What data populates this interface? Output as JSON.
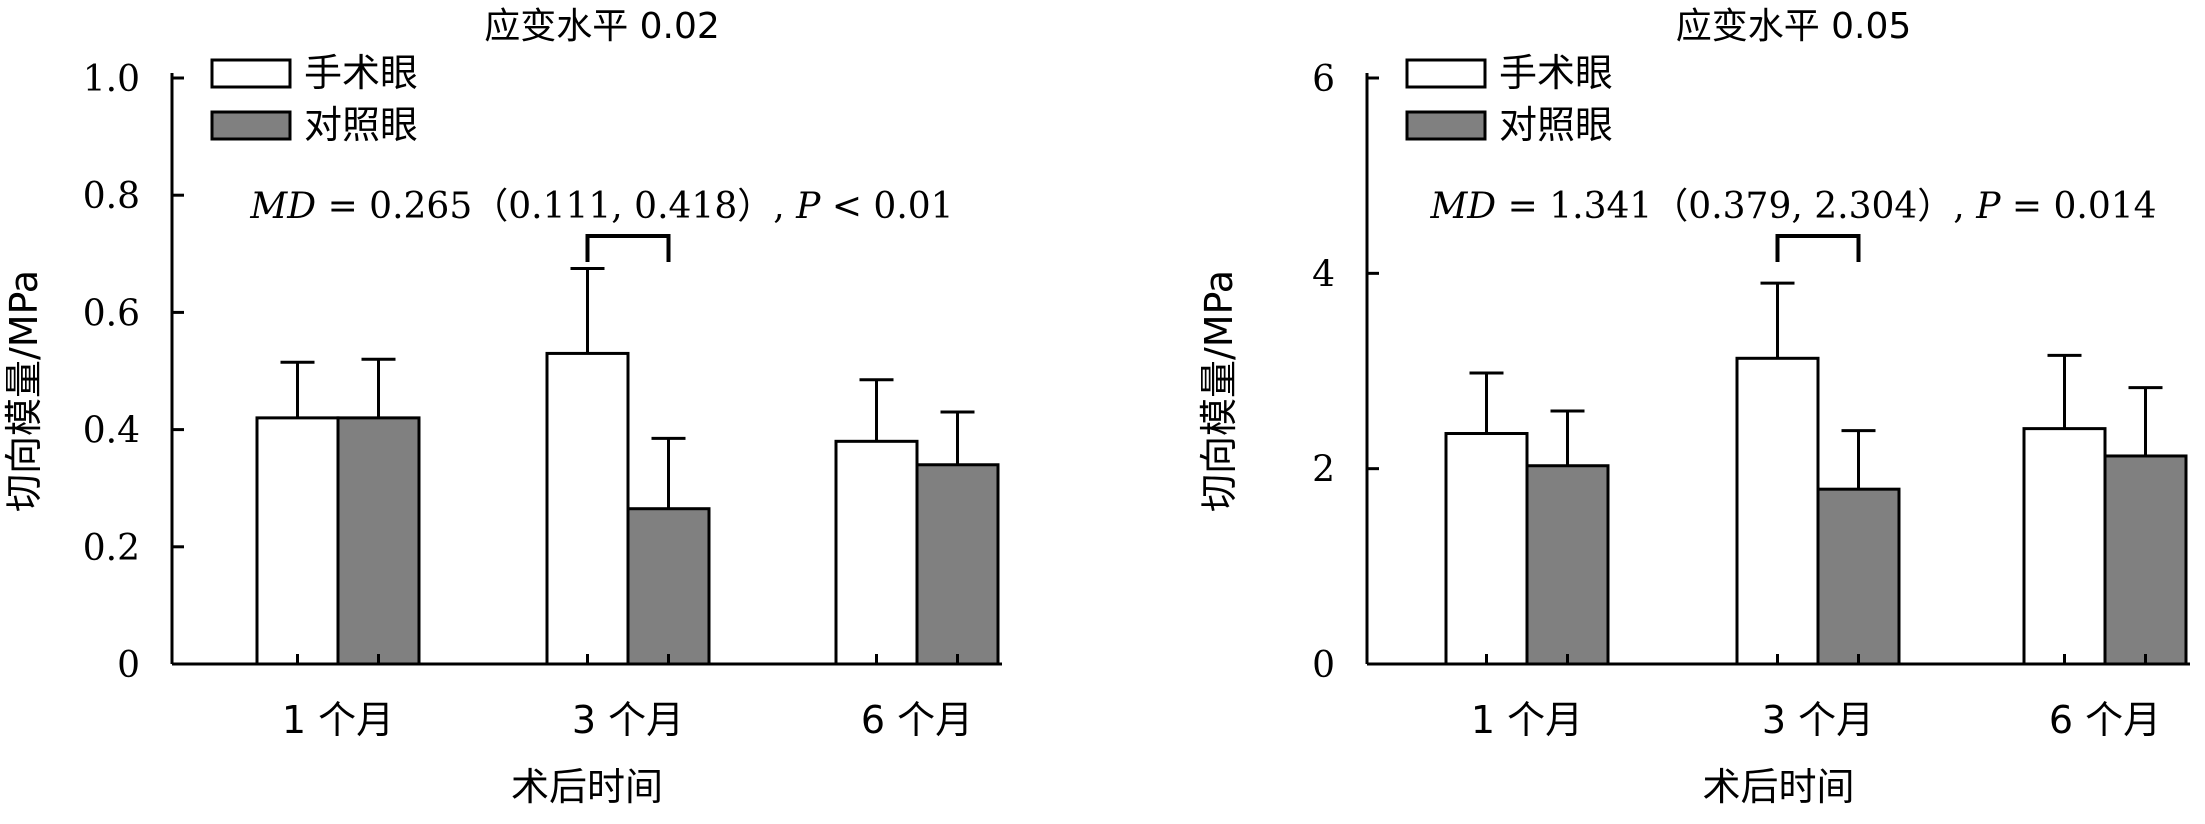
{
  "chart_data": [
    {
      "type": "bar",
      "title": "应变水平 0.02",
      "xlabel": "术后时间",
      "ylabel": "切向模量/MPa",
      "ylim": [
        0,
        1.0
      ],
      "yticks": [
        0,
        0.2,
        0.4,
        0.6,
        0.8,
        1.0
      ],
      "ytick_labels": [
        "0",
        "0.2",
        "0.4",
        "0.6",
        "0.8",
        "1.0"
      ],
      "categories": [
        "1 个月",
        "3 个月",
        "6 个月"
      ],
      "series": [
        {
          "name": "手术眼",
          "values": [
            0.42,
            0.53,
            0.38
          ],
          "errors": [
            0.095,
            0.145,
            0.105
          ],
          "color": "#ffffff"
        },
        {
          "name": "对照眼",
          "values": [
            0.42,
            0.265,
            0.34
          ],
          "errors": [
            0.1,
            0.12,
            0.09
          ],
          "color": "#808080"
        }
      ],
      "legend": "top-left",
      "grid": false,
      "annotation": {
        "parts": [
          {
            "text": "MD",
            "italic": true
          },
          {
            "text": " = 0.265（0.111, 0.418）, ",
            "italic": false
          },
          {
            "text": "P",
            "italic": true
          },
          {
            "text": " < 0.01",
            "italic": false
          }
        ],
        "bracket_category": 1
      }
    },
    {
      "type": "bar",
      "title": "应变水平 0.05",
      "xlabel": "术后时间",
      "ylabel": "切向模量/MPa",
      "ylim": [
        0,
        6
      ],
      "yticks": [
        0,
        2,
        4,
        6
      ],
      "ytick_labels": [
        "0",
        "2",
        "4",
        "6"
      ],
      "categories": [
        "1 个月",
        "3 个月",
        "6 个月"
      ],
      "series": [
        {
          "name": "手术眼",
          "values": [
            2.36,
            3.13,
            2.41
          ],
          "errors": [
            0.62,
            0.77,
            0.75
          ],
          "color": "#ffffff"
        },
        {
          "name": "对照眼",
          "values": [
            2.03,
            1.79,
            2.13
          ],
          "errors": [
            0.56,
            0.6,
            0.7
          ],
          "color": "#808080"
        }
      ],
      "legend": "top-left",
      "grid": false,
      "annotation": {
        "parts": [
          {
            "text": "MD",
            "italic": true
          },
          {
            "text": " = 1.341（0.379, 2.304）, ",
            "italic": false
          },
          {
            "text": "P",
            "italic": true
          },
          {
            "text": " = 0.014",
            "italic": false
          }
        ],
        "bracket_category": 1
      }
    }
  ]
}
